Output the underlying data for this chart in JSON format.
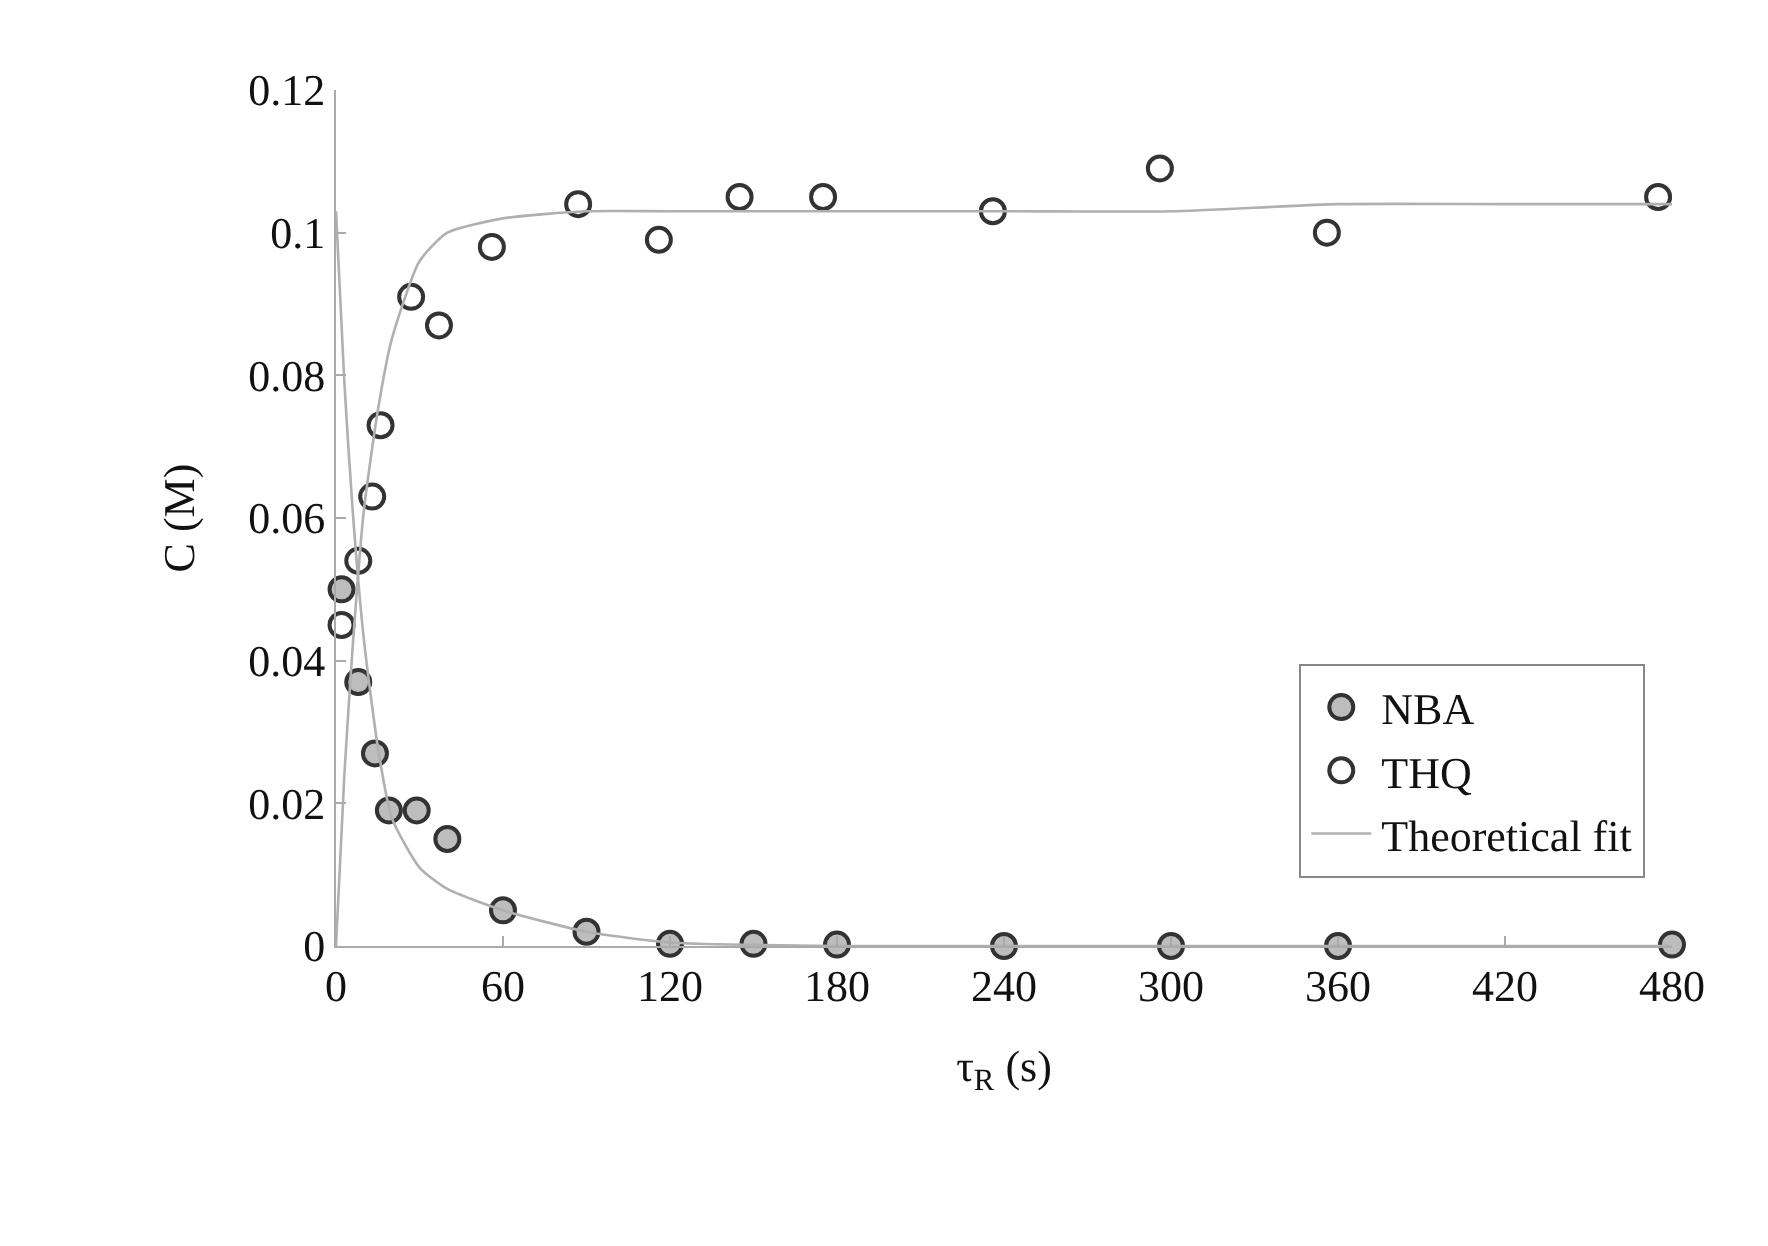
{
  "chart_data": {
    "type": "scatter",
    "xlabel": "τ$_{R}$ (s)",
    "ylabel": "C (M)",
    "xlim": [
      0,
      480
    ],
    "ylim": [
      0,
      0.12
    ],
    "xticks": [
      0,
      60,
      120,
      180,
      240,
      300,
      360,
      420,
      480
    ],
    "yticks": [
      0,
      0.02,
      0.04,
      0.06,
      0.08,
      0.1,
      0.12
    ],
    "grid": false,
    "legend": "bottom right",
    "series": [
      {
        "name": "NBA",
        "marker": "circle",
        "color": "#bdbdbd",
        "x": [
          2,
          8,
          14,
          19,
          29,
          40,
          60,
          90,
          120,
          150,
          180,
          240,
          300,
          360,
          480
        ],
        "values": [
          0.05,
          0.037,
          0.027,
          0.019,
          0.019,
          0.015,
          0.005,
          0.002,
          0.0003,
          0.0003,
          0.0002,
          0,
          0,
          0,
          0.0002
        ]
      },
      {
        "name": "THQ",
        "marker": "circle",
        "color": "#ffffff",
        "x": [
          2,
          8,
          13,
          16,
          27,
          37,
          56,
          87,
          116,
          145,
          175,
          236,
          296,
          356,
          475
        ],
        "values": [
          0.045,
          0.054,
          0.063,
          0.073,
          0.091,
          0.087,
          0.098,
          0.104,
          0.099,
          0.105,
          0.105,
          0.103,
          0.109,
          0.1,
          0.105
        ]
      },
      {
        "name": "Theoretical fit",
        "type": "line",
        "marker": "none",
        "color": "#b0b0b0",
        "x": [
          0,
          3,
          6,
          10,
          15,
          20,
          30,
          40,
          60,
          90,
          120,
          180,
          240,
          300,
          360,
          420,
          480
        ],
        "values": [
          0,
          0.024,
          0.042,
          0.061,
          0.075,
          0.085,
          0.096,
          0.1,
          0.102,
          0.103,
          0.103,
          0.103,
          0.103,
          0.103,
          0.104,
          0.104,
          0.104
        ]
      },
      {
        "type": "line",
        "marker": "none",
        "color": "#b0b0b0",
        "x": [
          0,
          3,
          6,
          10,
          15,
          20,
          30,
          40,
          60,
          90,
          120,
          180,
          240,
          300,
          360,
          420,
          480
        ],
        "values": [
          0.103,
          0.079,
          0.061,
          0.043,
          0.028,
          0.018,
          0.011,
          0.008,
          0.005,
          0.002,
          0.0005,
          0,
          0,
          0,
          0,
          0,
          0
        ]
      }
    ]
  }
}
